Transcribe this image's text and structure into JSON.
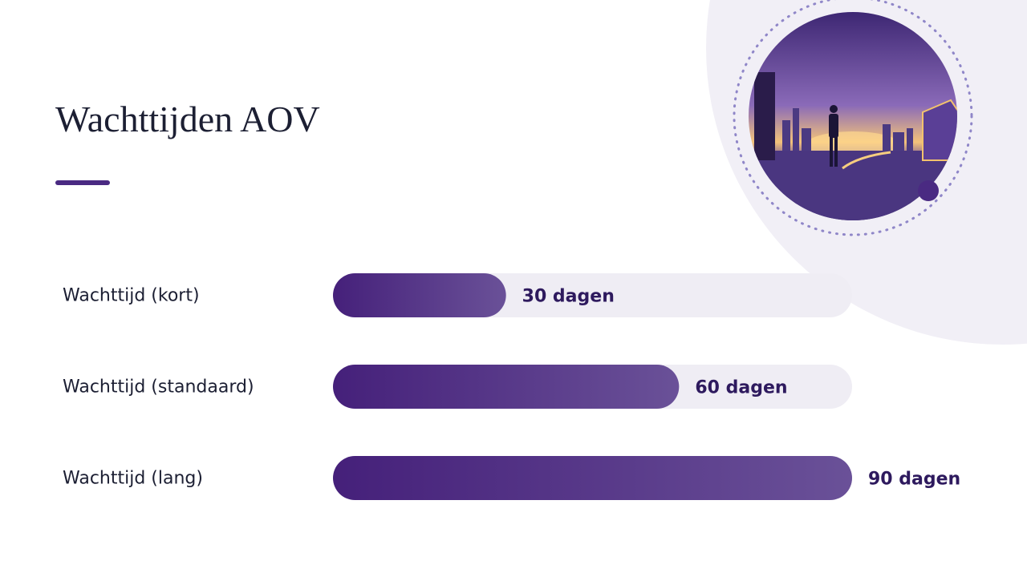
{
  "chart_data": {
    "type": "bar",
    "orientation": "horizontal",
    "title": "Wachttijden AOV",
    "categories": [
      "Wachttijd (kort)",
      "Wachttijd (standaard)",
      "Wachttijd (lang)"
    ],
    "values": [
      30,
      60,
      90
    ],
    "value_labels": [
      "30 dagen",
      "60 dagen",
      "90 dagen"
    ],
    "color": "#4a2a82"
  }
}
